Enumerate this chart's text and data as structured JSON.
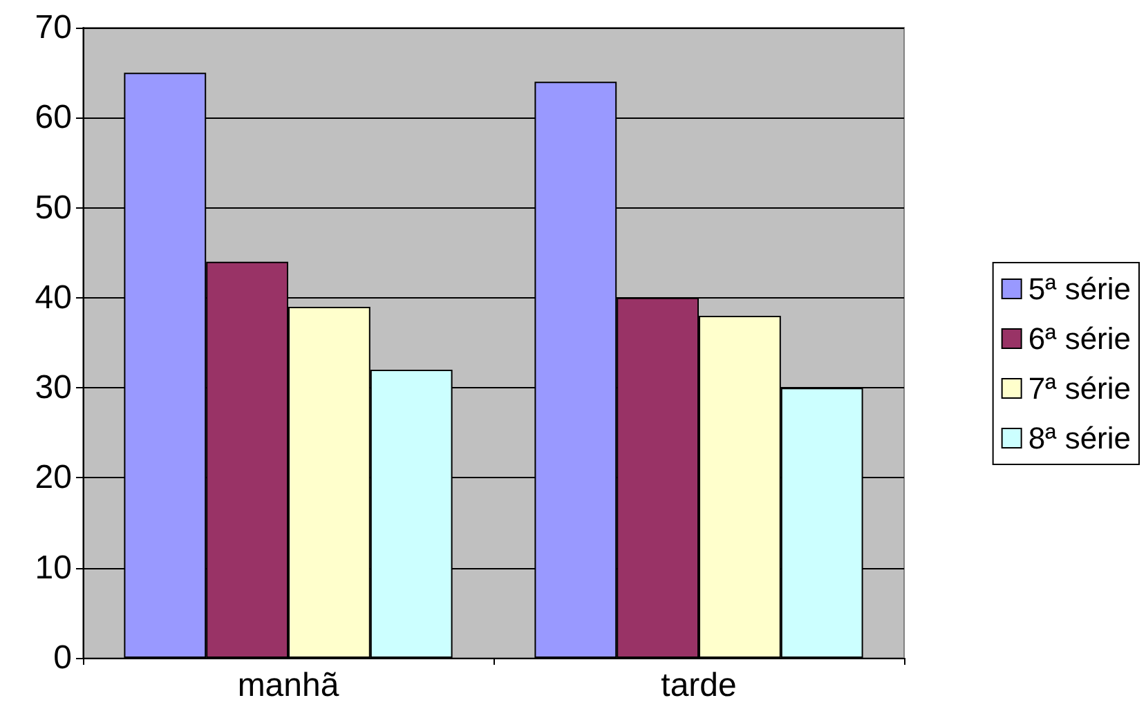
{
  "chart_data": {
    "type": "bar",
    "categories": [
      "manhã",
      "tarde"
    ],
    "series": [
      {
        "name": "5ª série",
        "color": "#9999ff",
        "values": [
          65,
          64
        ]
      },
      {
        "name": "6ª série",
        "color": "#993366",
        "values": [
          44,
          40
        ]
      },
      {
        "name": "7ª série",
        "color": "#ffffcc",
        "values": [
          39,
          38
        ]
      },
      {
        "name": "8ª série",
        "color": "#ccffff",
        "values": [
          32,
          30
        ]
      }
    ],
    "ylim": [
      0,
      70
    ],
    "yticks": [
      0,
      10,
      20,
      30,
      40,
      50,
      60,
      70
    ],
    "grid": "y",
    "legend": "right"
  }
}
